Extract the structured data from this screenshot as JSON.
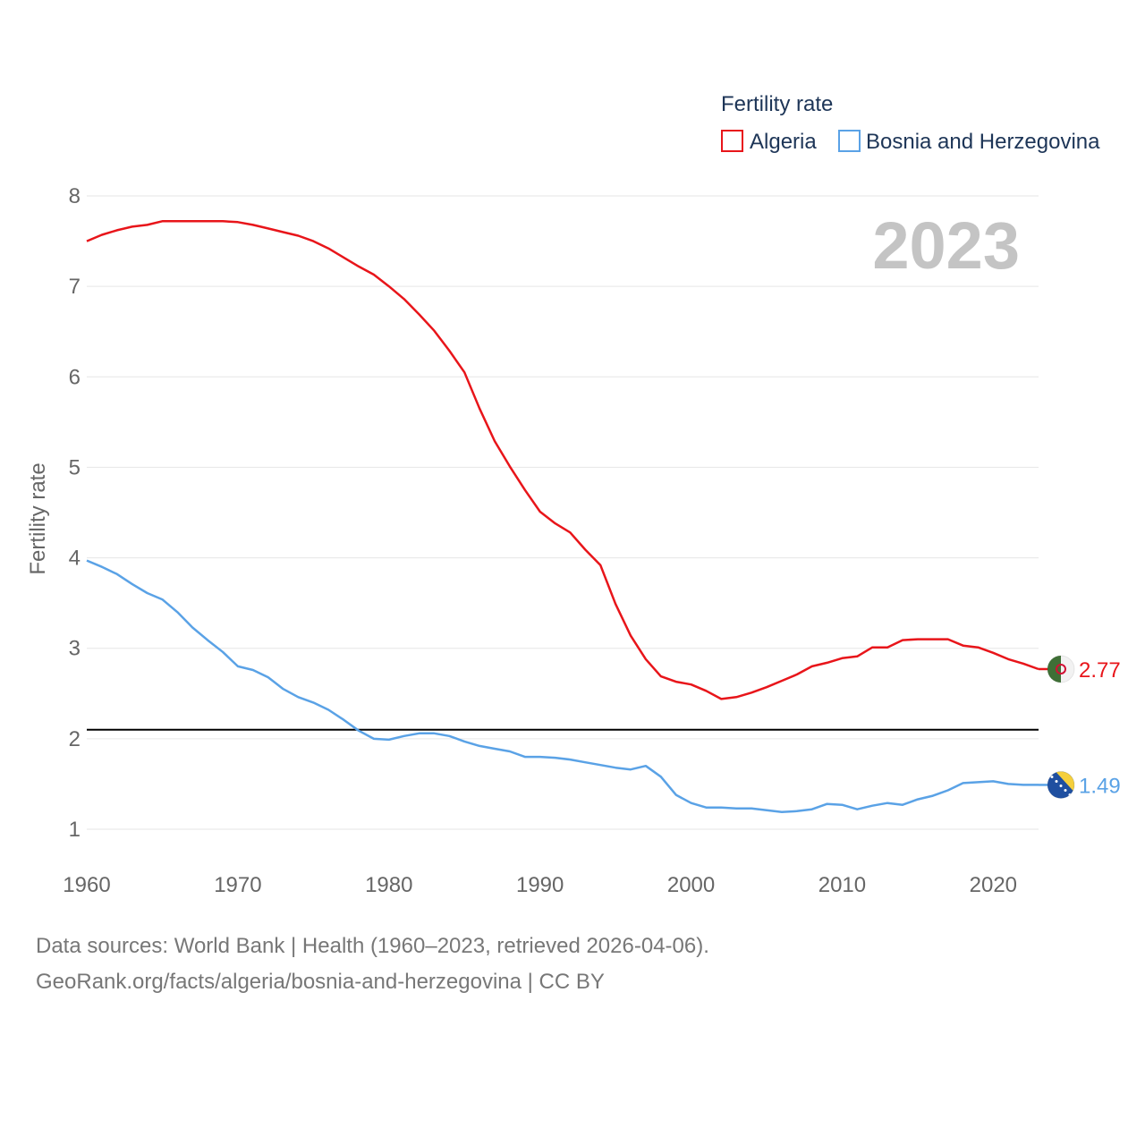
{
  "chart_data": {
    "type": "line",
    "title": "",
    "legend_title": "Fertility rate",
    "ylabel": "Fertility rate",
    "xlabel": "",
    "year_label": "2023",
    "xlim": [
      1960,
      2023
    ],
    "ylim": [
      0.6,
      8.4
    ],
    "x_ticks": [
      1960,
      1970,
      1980,
      1990,
      2000,
      2010,
      2020
    ],
    "y_ticks": [
      1,
      2,
      3,
      4,
      5,
      6,
      7,
      8
    ],
    "reference_line": 2.1,
    "x": [
      1960,
      1961,
      1962,
      1963,
      1964,
      1965,
      1966,
      1967,
      1968,
      1969,
      1970,
      1971,
      1972,
      1973,
      1974,
      1975,
      1976,
      1977,
      1978,
      1979,
      1980,
      1981,
      1982,
      1983,
      1984,
      1985,
      1986,
      1987,
      1988,
      1989,
      1990,
      1991,
      1992,
      1993,
      1994,
      1995,
      1996,
      1997,
      1998,
      1999,
      2000,
      2001,
      2002,
      2003,
      2004,
      2005,
      2006,
      2007,
      2008,
      2009,
      2010,
      2011,
      2012,
      2013,
      2014,
      2015,
      2016,
      2017,
      2018,
      2019,
      2020,
      2021,
      2022,
      2023
    ],
    "series": [
      {
        "name": "Algeria",
        "color": "#e8151a",
        "end_label": "2.77",
        "flag": "algeria",
        "values": [
          7.5,
          7.57,
          7.62,
          7.66,
          7.68,
          7.72,
          7.72,
          7.72,
          7.72,
          7.72,
          7.71,
          7.68,
          7.64,
          7.6,
          7.56,
          7.5,
          7.42,
          7.32,
          7.22,
          7.13,
          7.0,
          6.86,
          6.69,
          6.51,
          6.29,
          6.05,
          5.65,
          5.29,
          5.01,
          4.75,
          4.51,
          4.38,
          4.28,
          4.09,
          3.92,
          3.49,
          3.14,
          2.88,
          2.69,
          2.63,
          2.6,
          2.53,
          2.44,
          2.46,
          2.51,
          2.57,
          2.64,
          2.71,
          2.8,
          2.84,
          2.89,
          2.91,
          3.01,
          3.01,
          3.09,
          3.1,
          3.1,
          3.1,
          3.03,
          3.01,
          2.95,
          2.88,
          2.83,
          2.77
        ]
      },
      {
        "name": "Bosnia and Herzegovina",
        "color": "#5aa2e6",
        "end_label": "1.49",
        "flag": "bosnia",
        "values": [
          3.97,
          3.9,
          3.82,
          3.71,
          3.61,
          3.54,
          3.4,
          3.23,
          3.09,
          2.96,
          2.8,
          2.76,
          2.68,
          2.55,
          2.46,
          2.4,
          2.32,
          2.21,
          2.09,
          2.0,
          1.99,
          2.03,
          2.06,
          2.06,
          2.03,
          1.97,
          1.92,
          1.89,
          1.86,
          1.8,
          1.8,
          1.79,
          1.77,
          1.74,
          1.71,
          1.68,
          1.66,
          1.7,
          1.58,
          1.38,
          1.29,
          1.24,
          1.24,
          1.23,
          1.23,
          1.21,
          1.19,
          1.2,
          1.22,
          1.28,
          1.27,
          1.22,
          1.26,
          1.29,
          1.27,
          1.33,
          1.37,
          1.43,
          1.51,
          1.52,
          1.53,
          1.5,
          1.49,
          1.49
        ]
      }
    ]
  },
  "footer": {
    "line1": "Data sources: World Bank | Health (1960–2023, retrieved 2026-04-06).",
    "line2": "GeoRank.org/facts/algeria/bosnia-and-herzegovina | CC BY"
  }
}
